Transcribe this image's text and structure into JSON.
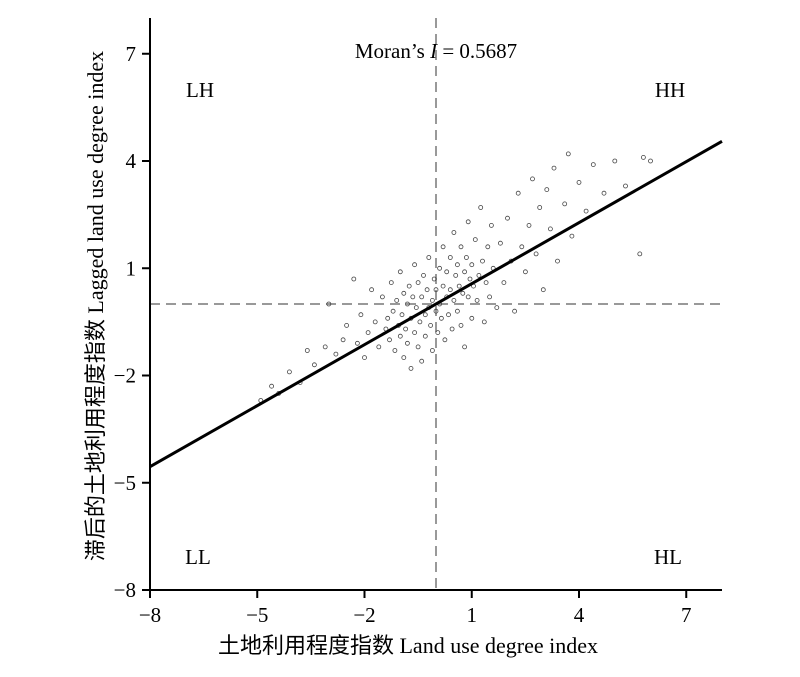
{
  "chart_data": {
    "type": "scatter",
    "title": "",
    "xlabel": "土地利用程度指数 Land use degree index",
    "ylabel": "滞后的土地利用程度指数 Lagged land use degree index",
    "xlim": [
      -8,
      8
    ],
    "ylim": [
      -8,
      8
    ],
    "x_ticks": [
      -8,
      -5,
      -2,
      1,
      4,
      7
    ],
    "y_ticks": [
      -8,
      -5,
      -2,
      1,
      4,
      7
    ],
    "x_tick_labels": [
      "−8",
      "−5",
      "−2",
      "1",
      "4",
      "7"
    ],
    "y_tick_labels": [
      "−8",
      "−5",
      "−2",
      "1",
      "4",
      "7"
    ],
    "statistic": {
      "prefix": "Moran’s ",
      "symbol": "I",
      "suffix": " = 0.5687",
      "value": 0.5687
    },
    "quadrants": [
      {
        "label": "LH",
        "pos": "top-left"
      },
      {
        "label": "HH",
        "pos": "top-right"
      },
      {
        "label": "LL",
        "pos": "bottom-left"
      },
      {
        "label": "HL",
        "pos": "bottom-right"
      }
    ],
    "reference_lines": {
      "x": 0,
      "y": 0,
      "style": "dashed"
    },
    "fit_line": {
      "slope": 0.5687,
      "intercept": 0,
      "x_range": [
        -8,
        8
      ]
    },
    "series": [
      {
        "marker": "hollow-circle",
        "points": [
          [
            -4.9,
            -2.7
          ],
          [
            -4.6,
            -2.3
          ],
          [
            -4.4,
            -2.5
          ],
          [
            -4.1,
            -1.9
          ],
          [
            -3.8,
            -2.2
          ],
          [
            -3.6,
            -1.3
          ],
          [
            -3.4,
            -1.7
          ],
          [
            -3.1,
            -1.2
          ],
          [
            -3.0,
            0.0
          ],
          [
            -2.8,
            -1.4
          ],
          [
            -2.6,
            -1.0
          ],
          [
            -2.5,
            -0.6
          ],
          [
            -2.3,
            0.7
          ],
          [
            -2.2,
            -1.1
          ],
          [
            -2.1,
            -0.3
          ],
          [
            -2.0,
            -1.5
          ],
          [
            -1.9,
            -0.8
          ],
          [
            -1.8,
            0.4
          ],
          [
            -1.7,
            -0.5
          ],
          [
            -1.6,
            -1.2
          ],
          [
            -1.5,
            0.2
          ],
          [
            -1.4,
            -0.7
          ],
          [
            -1.35,
            -0.4
          ],
          [
            -1.3,
            -1.0
          ],
          [
            -1.25,
            0.6
          ],
          [
            -1.2,
            -0.2
          ],
          [
            -1.15,
            -1.3
          ],
          [
            -1.1,
            0.1
          ],
          [
            -1.05,
            -0.6
          ],
          [
            -1.0,
            0.9
          ],
          [
            -1.0,
            -0.9
          ],
          [
            -0.95,
            -0.3
          ],
          [
            -0.9,
            -1.5
          ],
          [
            -0.9,
            0.3
          ],
          [
            -0.85,
            -0.7
          ],
          [
            -0.8,
            0.0
          ],
          [
            -0.8,
            -1.1
          ],
          [
            -0.75,
            0.5
          ],
          [
            -0.7,
            -0.4
          ],
          [
            -0.7,
            -1.8
          ],
          [
            -0.65,
            0.2
          ],
          [
            -0.6,
            -0.8
          ],
          [
            -0.6,
            1.1
          ],
          [
            -0.55,
            -0.1
          ],
          [
            -0.5,
            -1.2
          ],
          [
            -0.5,
            0.6
          ],
          [
            -0.45,
            -0.5
          ],
          [
            -0.4,
            0.2
          ],
          [
            -0.4,
            -1.6
          ],
          [
            -0.35,
            0.8
          ],
          [
            -0.3,
            -0.3
          ],
          [
            -0.3,
            -0.9
          ],
          [
            -0.25,
            0.4
          ],
          [
            -0.2,
            -0.1
          ],
          [
            -0.2,
            1.3
          ],
          [
            -0.15,
            -0.6
          ],
          [
            -0.1,
            0.1
          ],
          [
            -0.1,
            -1.3
          ],
          [
            -0.05,
            0.7
          ],
          [
            0.0,
            -0.2
          ],
          [
            0.0,
            0.4
          ],
          [
            0.05,
            -0.8
          ],
          [
            0.1,
            1.0
          ],
          [
            0.1,
            0.0
          ],
          [
            0.15,
            -0.4
          ],
          [
            0.2,
            0.5
          ],
          [
            0.2,
            1.6
          ],
          [
            0.25,
            -1.0
          ],
          [
            0.3,
            0.2
          ],
          [
            0.3,
            0.9
          ],
          [
            0.35,
            -0.3
          ],
          [
            0.4,
            1.3
          ],
          [
            0.4,
            0.4
          ],
          [
            0.45,
            -0.7
          ],
          [
            0.5,
            0.1
          ],
          [
            0.5,
            2.0
          ],
          [
            0.55,
            0.8
          ],
          [
            0.6,
            -0.2
          ],
          [
            0.6,
            1.1
          ],
          [
            0.65,
            0.5
          ],
          [
            0.7,
            -0.6
          ],
          [
            0.7,
            1.6
          ],
          [
            0.75,
            0.3
          ],
          [
            0.8,
            0.9
          ],
          [
            0.8,
            -1.2
          ],
          [
            0.85,
            1.3
          ],
          [
            0.9,
            0.2
          ],
          [
            0.9,
            2.3
          ],
          [
            0.95,
            0.7
          ],
          [
            1.0,
            1.1
          ],
          [
            1.0,
            -0.4
          ],
          [
            1.05,
            0.5
          ],
          [
            1.1,
            1.8
          ],
          [
            1.15,
            0.1
          ],
          [
            1.2,
            0.8
          ],
          [
            1.25,
            2.7
          ],
          [
            1.3,
            1.2
          ],
          [
            1.35,
            -0.5
          ],
          [
            1.4,
            0.6
          ],
          [
            1.45,
            1.6
          ],
          [
            1.5,
            0.2
          ],
          [
            1.55,
            2.2
          ],
          [
            1.6,
            1.0
          ],
          [
            1.7,
            -0.1
          ],
          [
            1.8,
            1.7
          ],
          [
            1.9,
            0.6
          ],
          [
            2.0,
            2.4
          ],
          [
            2.1,
            1.2
          ],
          [
            2.2,
            -0.2
          ],
          [
            2.3,
            3.1
          ],
          [
            2.4,
            1.6
          ],
          [
            2.5,
            0.9
          ],
          [
            2.6,
            2.2
          ],
          [
            2.7,
            3.5
          ],
          [
            2.8,
            1.4
          ],
          [
            2.9,
            2.7
          ],
          [
            3.0,
            0.4
          ],
          [
            3.1,
            3.2
          ],
          [
            3.2,
            2.1
          ],
          [
            3.3,
            3.8
          ],
          [
            3.4,
            1.2
          ],
          [
            3.6,
            2.8
          ],
          [
            3.7,
            4.2
          ],
          [
            3.8,
            1.9
          ],
          [
            4.0,
            3.4
          ],
          [
            4.2,
            2.6
          ],
          [
            4.4,
            3.9
          ],
          [
            4.7,
            3.1
          ],
          [
            5.0,
            4.0
          ],
          [
            5.3,
            3.3
          ],
          [
            5.7,
            1.4
          ],
          [
            5.8,
            4.1
          ],
          [
            6.0,
            4.0
          ]
        ]
      }
    ]
  }
}
